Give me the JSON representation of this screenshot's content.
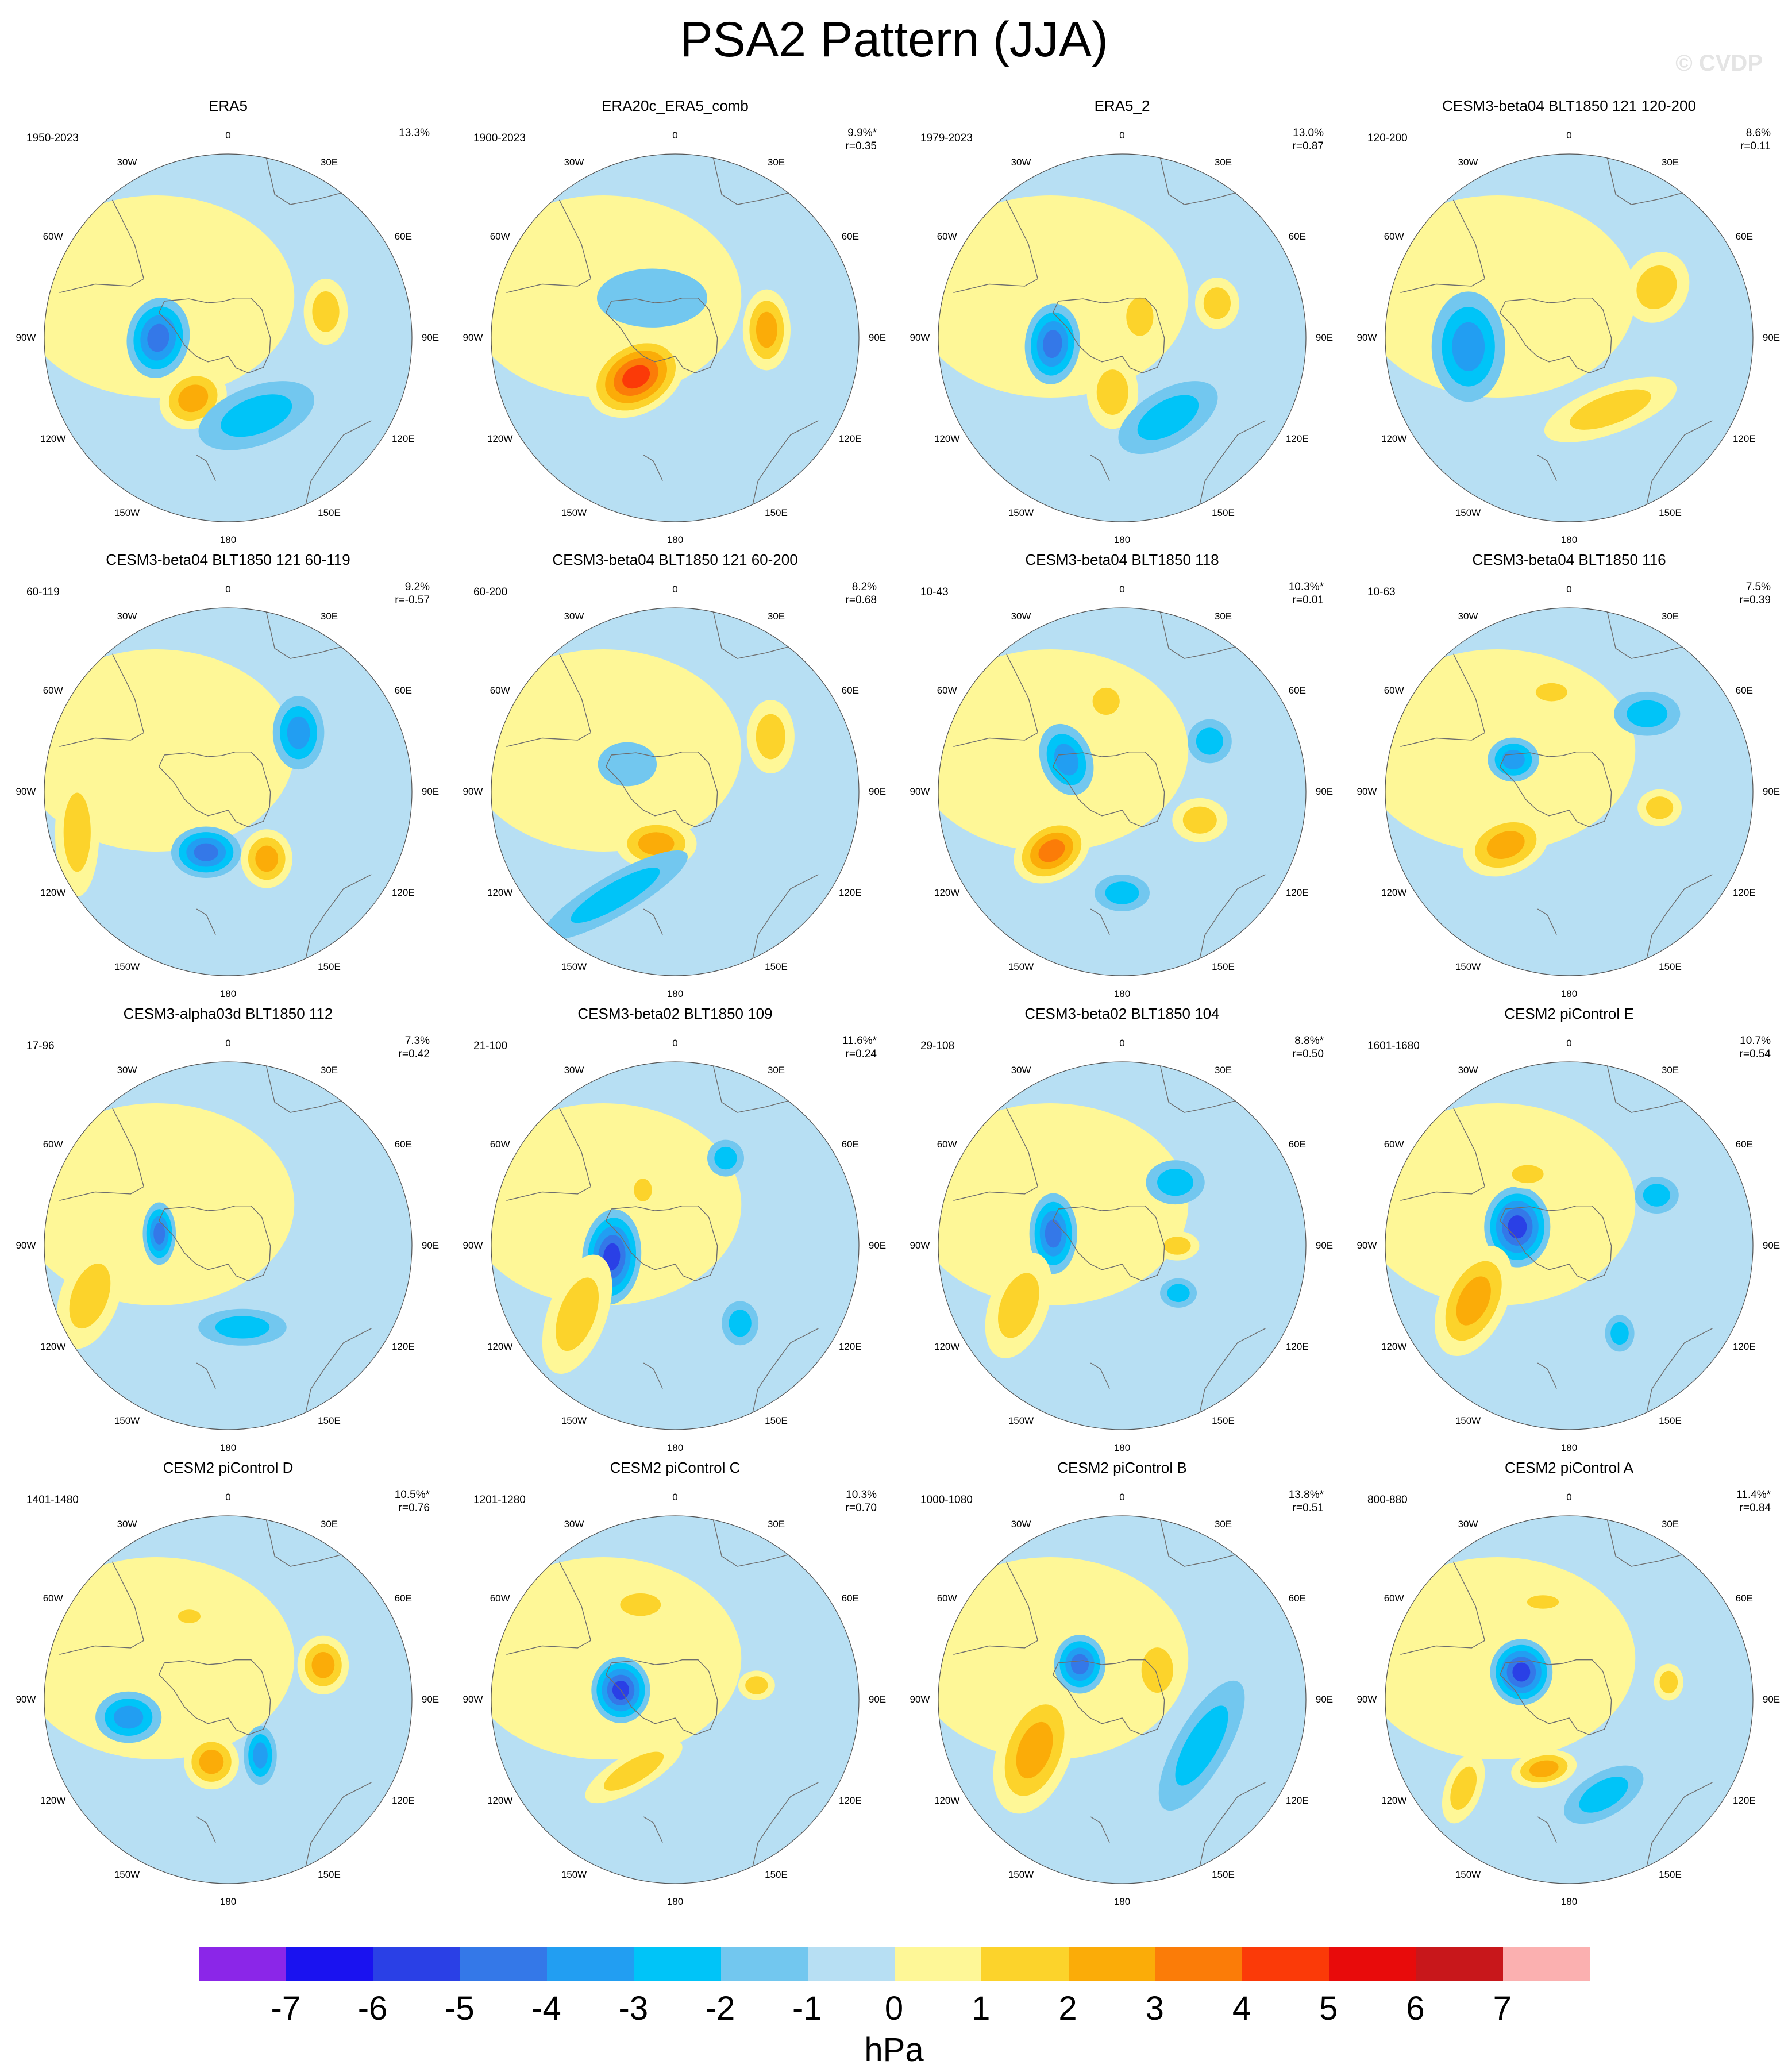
{
  "title": "PSA2 Pattern (JJA)",
  "watermark": "© CVDP",
  "colors": {
    "neg1": "#b7dff3",
    "pos1": "#fef797",
    "land_outline": "#6e6e6e"
  },
  "longitude_labels": [
    "0",
    "30E",
    "60E",
    "90E",
    "120E",
    "150E",
    "180",
    "150W",
    "120W",
    "90W",
    "60W",
    "30W"
  ],
  "panels": [
    {
      "title": "ERA5",
      "period": "1950-2023",
      "pct": "13.3%",
      "r": "",
      "features": [
        {
          "lon": -90,
          "dist": 0.38,
          "value": -4,
          "rx": 0.17,
          "ry": 0.22,
          "rot": 10
        },
        {
          "lon": -150,
          "dist": 0.38,
          "value": 3,
          "rx": 0.19,
          "ry": 0.16,
          "rot": -30
        },
        {
          "lon": 160,
          "dist": 0.45,
          "value": -2,
          "rx": 0.33,
          "ry": 0.16,
          "rot": -20
        },
        {
          "lon": 75,
          "dist": 0.55,
          "value": 2,
          "rx": 0.12,
          "ry": 0.18,
          "rot": 0
        },
        {
          "lon": -20,
          "dist": 0.4,
          "value": 1,
          "rx": 0.12,
          "ry": 0.06,
          "rot": 0
        }
      ]
    },
    {
      "title": "ERA20c_ERA5_comb",
      "period": "1900-2023",
      "pct": "9.9%*",
      "r": "r=0.35",
      "features": [
        {
          "lon": -135,
          "dist": 0.3,
          "value": 5,
          "rx": 0.28,
          "ry": 0.2,
          "rot": -30
        },
        {
          "lon": 85,
          "dist": 0.5,
          "value": 3,
          "rx": 0.13,
          "ry": 0.22,
          "rot": 0
        },
        {
          "lon": -30,
          "dist": 0.25,
          "value": -1,
          "rx": 0.3,
          "ry": 0.16,
          "rot": 0
        }
      ]
    },
    {
      "title": "ERA5_2",
      "period": "1979-2023",
      "pct": "13.0%",
      "r": "r=0.87",
      "features": [
        {
          "lon": -95,
          "dist": 0.38,
          "value": -4,
          "rx": 0.15,
          "ry": 0.22,
          "rot": 5
        },
        {
          "lon": -170,
          "dist": 0.3,
          "value": 2,
          "rx": 0.14,
          "ry": 0.2,
          "rot": 0
        },
        {
          "lon": 150,
          "dist": 0.5,
          "value": -2,
          "rx": 0.3,
          "ry": 0.15,
          "rot": -30
        },
        {
          "lon": 70,
          "dist": 0.55,
          "value": 2,
          "rx": 0.12,
          "ry": 0.14,
          "rot": 0
        },
        {
          "lon": 40,
          "dist": 0.15,
          "value": 2,
          "rx": 0.12,
          "ry": 0.17,
          "rot": 0
        }
      ]
    },
    {
      "title": "CESM3-beta04 BLT1850 121 120-200",
      "period": "120-200",
      "pct": "8.6%",
      "r": "r=0.11",
      "features": [
        {
          "lon": -95,
          "dist": 0.55,
          "value": -3,
          "rx": 0.2,
          "ry": 0.3,
          "rot": 0
        },
        {
          "lon": 60,
          "dist": 0.55,
          "value": 2,
          "rx": 0.17,
          "ry": 0.2,
          "rot": 30
        },
        {
          "lon": 150,
          "dist": 0.45,
          "value": 2,
          "rx": 0.38,
          "ry": 0.13,
          "rot": -20
        },
        {
          "lon": 20,
          "dist": 0.3,
          "value": 1,
          "rx": 0.2,
          "ry": 0.12,
          "rot": 0
        }
      ]
    },
    {
      "title": "CESM3-beta04 BLT1850 121 60-119",
      "period": "60-119",
      "pct": "9.2%",
      "r": "r=-0.57",
      "features": [
        {
          "lon": -160,
          "dist": 0.35,
          "value": -4,
          "rx": 0.19,
          "ry": 0.14,
          "rot": 0
        },
        {
          "lon": 150,
          "dist": 0.42,
          "value": 3,
          "rx": 0.14,
          "ry": 0.16,
          "rot": 0
        },
        {
          "lon": 50,
          "dist": 0.5,
          "value": -3,
          "rx": 0.14,
          "ry": 0.2,
          "rot": 0
        },
        {
          "lon": -105,
          "dist": 0.85,
          "value": 2,
          "rx": 0.12,
          "ry": 0.35,
          "rot": 0
        }
      ]
    },
    {
      "title": "CESM3-beta04 BLT1850 121 60-200",
      "period": "60-200",
      "pct": "8.2%",
      "r": "r=0.68",
      "features": [
        {
          "lon": -160,
          "dist": 0.3,
          "value": 3,
          "rx": 0.22,
          "ry": 0.14,
          "rot": 0
        },
        {
          "lon": 60,
          "dist": 0.6,
          "value": 2,
          "rx": 0.13,
          "ry": 0.2,
          "rot": 0
        },
        {
          "lon": -150,
          "dist": 0.65,
          "value": -2,
          "rx": 0.45,
          "ry": 0.11,
          "rot": -30
        },
        {
          "lon": -60,
          "dist": 0.3,
          "value": -1,
          "rx": 0.16,
          "ry": 0.12,
          "rot": 0
        }
      ]
    },
    {
      "title": "CESM3-beta04 BLT1850 118",
      "period": "10-43",
      "pct": "10.3%*",
      "r": "r=0.01",
      "features": [
        {
          "lon": -130,
          "dist": 0.5,
          "value": 4,
          "rx": 0.22,
          "ry": 0.16,
          "rot": -30
        },
        {
          "lon": -60,
          "dist": 0.35,
          "value": -3,
          "rx": 0.14,
          "ry": 0.2,
          "rot": -20
        },
        {
          "lon": -10,
          "dist": 0.5,
          "value": 2,
          "rx": 0.12,
          "ry": 0.12,
          "rot": 0
        },
        {
          "lon": 60,
          "dist": 0.55,
          "value": -2,
          "rx": 0.12,
          "ry": 0.12,
          "rot": 0
        },
        {
          "lon": 110,
          "dist": 0.45,
          "value": 2,
          "rx": 0.15,
          "ry": 0.12,
          "rot": 0
        },
        {
          "lon": 180,
          "dist": 0.55,
          "value": -2,
          "rx": 0.15,
          "ry": 0.1,
          "rot": 0
        }
      ]
    },
    {
      "title": "CESM3-beta04 BLT1850 116",
      "period": "10-63",
      "pct": "7.5%",
      "r": "r=0.39",
      "features": [
        {
          "lon": -130,
          "dist": 0.45,
          "value": 3,
          "rx": 0.24,
          "ry": 0.16,
          "rot": -20
        },
        {
          "lon": -60,
          "dist": 0.35,
          "value": -3,
          "rx": 0.14,
          "ry": 0.12,
          "rot": 0
        },
        {
          "lon": 45,
          "dist": 0.6,
          "value": -2,
          "rx": 0.18,
          "ry": 0.12,
          "rot": 0
        },
        {
          "lon": 100,
          "dist": 0.5,
          "value": 2,
          "rx": 0.12,
          "ry": 0.1,
          "rot": 0
        },
        {
          "lon": -10,
          "dist": 0.55,
          "value": 2,
          "rx": 0.14,
          "ry": 0.08,
          "rot": 0
        }
      ]
    },
    {
      "title": "CESM3-alpha03d BLT1850 112",
      "period": "17-96",
      "pct": "7.3%",
      "r": "r=0.42",
      "features": [
        {
          "lon": -80,
          "dist": 0.38,
          "value": -4,
          "rx": 0.09,
          "ry": 0.17,
          "rot": 0
        },
        {
          "lon": -110,
          "dist": 0.8,
          "value": 2,
          "rx": 0.16,
          "ry": 0.3,
          "rot": 20
        },
        {
          "lon": 170,
          "dist": 0.45,
          "value": -2,
          "rx": 0.24,
          "ry": 0.1,
          "rot": 0
        }
      ]
    },
    {
      "title": "CESM3-beta02 BLT1850 109",
      "period": "21-100",
      "pct": "11.6%*",
      "r": "r=0.24",
      "features": [
        {
          "lon": -100,
          "dist": 0.35,
          "value": -5,
          "rx": 0.16,
          "ry": 0.26,
          "rot": 5
        },
        {
          "lon": -125,
          "dist": 0.65,
          "value": 2,
          "rx": 0.16,
          "ry": 0.34,
          "rot": 20
        },
        {
          "lon": 140,
          "dist": 0.55,
          "value": -2,
          "rx": 0.1,
          "ry": 0.12,
          "rot": 0
        },
        {
          "lon": 30,
          "dist": 0.55,
          "value": -2,
          "rx": 0.1,
          "ry": 0.1,
          "rot": 0
        },
        {
          "lon": -30,
          "dist": 0.35,
          "value": 2,
          "rx": 0.08,
          "ry": 0.1,
          "rot": 0
        }
      ]
    },
    {
      "title": "CESM3-beta02 BLT1850 104",
      "period": "29-108",
      "pct": "8.8%*",
      "r": "r=0.50",
      "features": [
        {
          "lon": -80,
          "dist": 0.38,
          "value": -4,
          "rx": 0.13,
          "ry": 0.22,
          "rot": 0
        },
        {
          "lon": -120,
          "dist": 0.65,
          "value": 2,
          "rx": 0.16,
          "ry": 0.3,
          "rot": 20
        },
        {
          "lon": 40,
          "dist": 0.45,
          "value": -2,
          "rx": 0.16,
          "ry": 0.12,
          "rot": 0
        },
        {
          "lon": 130,
          "dist": 0.4,
          "value": -2,
          "rx": 0.1,
          "ry": 0.08,
          "rot": 0
        },
        {
          "lon": 90,
          "dist": 0.3,
          "value": 2,
          "rx": 0.12,
          "ry": 0.08,
          "rot": 0
        }
      ]
    },
    {
      "title": "CESM2 piControl E",
      "period": "1601-1680",
      "pct": "10.7%",
      "r": "r=0.54",
      "features": [
        {
          "lon": -70,
          "dist": 0.3,
          "value": -5,
          "rx": 0.18,
          "ry": 0.22,
          "rot": 0
        },
        {
          "lon": -120,
          "dist": 0.6,
          "value": 3,
          "rx": 0.18,
          "ry": 0.32,
          "rot": 25
        },
        {
          "lon": 60,
          "dist": 0.55,
          "value": -2,
          "rx": 0.12,
          "ry": 0.1,
          "rot": 0
        },
        {
          "lon": 150,
          "dist": 0.55,
          "value": -2,
          "rx": 0.08,
          "ry": 0.1,
          "rot": 0
        },
        {
          "lon": -30,
          "dist": 0.45,
          "value": 2,
          "rx": 0.14,
          "ry": 0.08,
          "rot": 0
        }
      ]
    },
    {
      "title": "CESM2 piControl D",
      "period": "1401-1480",
      "pct": "10.5%*",
      "r": "r=0.76",
      "features": [
        {
          "lon": -100,
          "dist": 0.55,
          "value": -3,
          "rx": 0.18,
          "ry": 0.14,
          "rot": 0
        },
        {
          "lon": -165,
          "dist": 0.35,
          "value": 3,
          "rx": 0.15,
          "ry": 0.15,
          "rot": 0
        },
        {
          "lon": 150,
          "dist": 0.35,
          "value": -3,
          "rx": 0.09,
          "ry": 0.16,
          "rot": 0
        },
        {
          "lon": 70,
          "dist": 0.55,
          "value": 3,
          "rx": 0.14,
          "ry": 0.16,
          "rot": 0
        },
        {
          "lon": -25,
          "dist": 0.5,
          "value": 2,
          "rx": 0.1,
          "ry": 0.06,
          "rot": 0
        }
      ]
    },
    {
      "title": "CESM2 piControl C",
      "period": "1201-1280",
      "pct": "10.3%",
      "r": "r=0.70",
      "features": [
        {
          "lon": -80,
          "dist": 0.3,
          "value": -5,
          "rx": 0.16,
          "ry": 0.18,
          "rot": 0
        },
        {
          "lon": -150,
          "dist": 0.45,
          "value": 2,
          "rx": 0.3,
          "ry": 0.1,
          "rot": -30
        },
        {
          "lon": 80,
          "dist": 0.45,
          "value": 2,
          "rx": 0.1,
          "ry": 0.08,
          "rot": 0
        },
        {
          "lon": -20,
          "dist": 0.55,
          "value": 2,
          "rx": 0.18,
          "ry": 0.1,
          "rot": 0
        }
      ]
    },
    {
      "title": "CESM2 piControl B",
      "period": "1000-1080",
      "pct": "13.8%*",
      "r": "r=0.51",
      "features": [
        {
          "lon": -50,
          "dist": 0.3,
          "value": -4,
          "rx": 0.14,
          "ry": 0.16,
          "rot": 0
        },
        {
          "lon": -120,
          "dist": 0.55,
          "value": 3,
          "rx": 0.2,
          "ry": 0.36,
          "rot": 20
        },
        {
          "lon": 120,
          "dist": 0.5,
          "value": -2,
          "rx": 0.14,
          "ry": 0.4,
          "rot": 30
        },
        {
          "lon": 50,
          "dist": 0.25,
          "value": 2,
          "rx": 0.14,
          "ry": 0.2,
          "rot": 0
        }
      ]
    },
    {
      "title": "CESM2 piControl A",
      "period": "800-880",
      "pct": "11.4%*",
      "r": "r=0.84",
      "features": [
        {
          "lon": -60,
          "dist": 0.3,
          "value": -5,
          "rx": 0.17,
          "ry": 0.18,
          "rot": 0
        },
        {
          "lon": -160,
          "dist": 0.4,
          "value": 3,
          "rx": 0.18,
          "ry": 0.1,
          "rot": -10
        },
        {
          "lon": 160,
          "dist": 0.55,
          "value": -2,
          "rx": 0.24,
          "ry": 0.12,
          "rot": -30
        },
        {
          "lon": 80,
          "dist": 0.55,
          "value": 2,
          "rx": 0.08,
          "ry": 0.1,
          "rot": 0
        },
        {
          "lon": -15,
          "dist": 0.55,
          "value": 2,
          "rx": 0.14,
          "ry": 0.06,
          "rot": 0
        },
        {
          "lon": -130,
          "dist": 0.75,
          "value": 2,
          "rx": 0.1,
          "ry": 0.2,
          "rot": 20
        }
      ]
    }
  ],
  "colorbar": {
    "colors": [
      "#8b26e8",
      "#1a12f0",
      "#2a40e6",
      "#3478e8",
      "#229ef2",
      "#00c4f8",
      "#72c7ef",
      "#b7dff3",
      "#fef797",
      "#fcd32b",
      "#fbac08",
      "#fb7c08",
      "#fb3a08",
      "#e80b0b",
      "#c8171b",
      "#fbb0b0"
    ],
    "ticks": [
      "-7",
      "-6",
      "-5",
      "-4",
      "-3",
      "-2",
      "-1",
      "0",
      "1",
      "2",
      "3",
      "4",
      "5",
      "6",
      "7"
    ],
    "unit": "hPa"
  }
}
